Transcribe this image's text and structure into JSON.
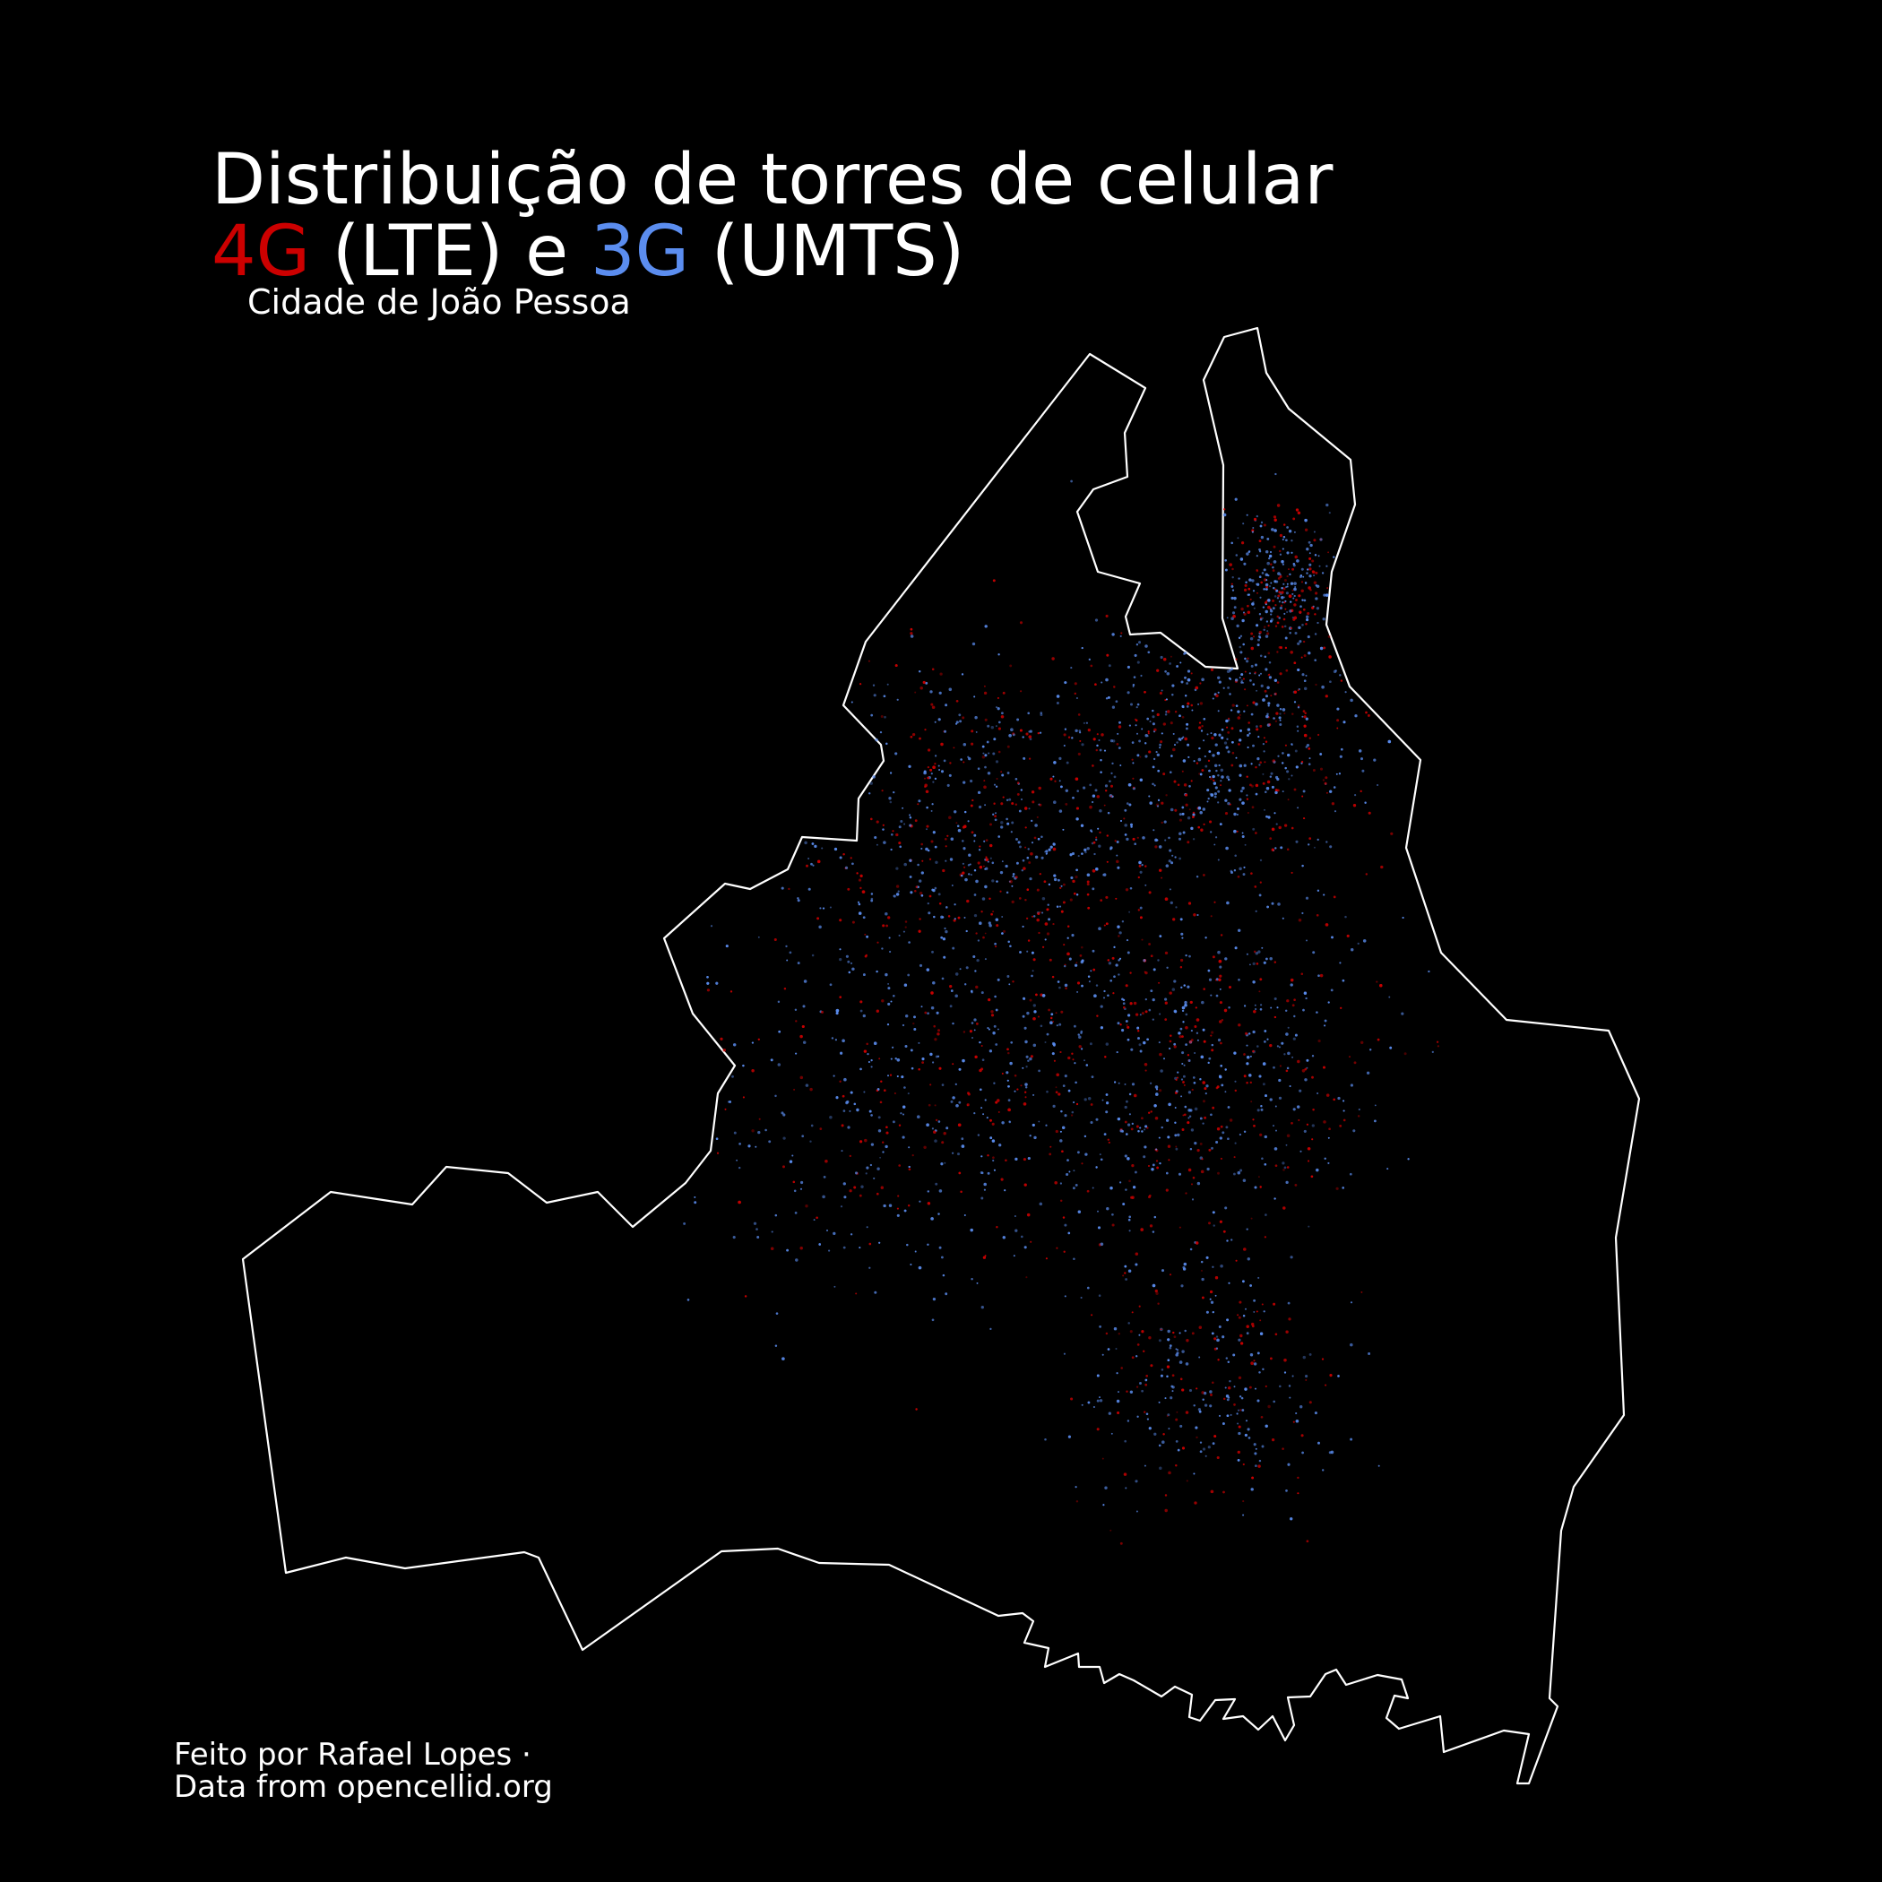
{
  "title": {
    "line1": "Distribuição de torres de celular",
    "line2": [
      {
        "text": "4G",
        "color": "#cc0000"
      },
      {
        "text": " (LTE) e ",
        "color": "#ffffff"
      },
      {
        "text": "3G",
        "color": "#5b8def"
      },
      {
        "text": " (UMTS)",
        "color": "#ffffff"
      }
    ]
  },
  "subtitle": "Cidade de João Pessoa",
  "credits": {
    "line1": "Feito por Rafael Lopes ·",
    "line2": "Data from opencellid.org"
  },
  "colors": {
    "background": "#000000",
    "boundary": "#ffffff",
    "lte_4g": "#cc0000",
    "umts_3g": "#5b8def"
  },
  "legend": [
    {
      "label": "4G",
      "technology": "LTE",
      "color": "#cc0000"
    },
    {
      "label": "3G",
      "technology": "UMTS",
      "color": "#5b8def"
    }
  ]
}
